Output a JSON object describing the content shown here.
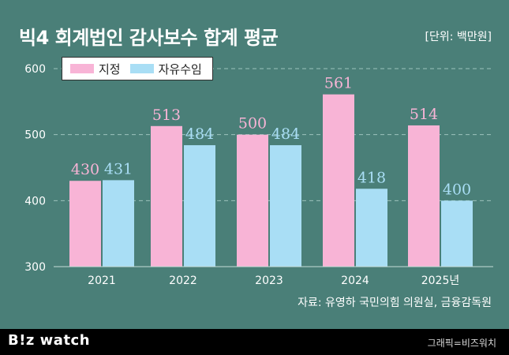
{
  "header": {
    "title": "빅4 회계법인 감사보수 합계 평균",
    "unit": "[단위: 백만원]"
  },
  "footer": {
    "source": "자료: 유영하 국민의힘 의원실, 금융감독원",
    "brand": "B!z watch",
    "credit": "그래픽=비즈워치"
  },
  "colors": {
    "background": "#4a7f78",
    "designated": "#f8b4d6",
    "free": "#a9def5"
  },
  "chart_data": {
    "type": "bar",
    "categories": [
      "2021",
      "2022",
      "2023",
      "2024",
      "2025년"
    ],
    "series": [
      {
        "name": "지정",
        "values": [
          430,
          513,
          500,
          561,
          514
        ]
      },
      {
        "name": "자유수임",
        "values": [
          431,
          484,
          484,
          418,
          400
        ]
      }
    ],
    "yticks": [
      "300",
      "400",
      "500",
      "600"
    ],
    "ylim": [
      300,
      600
    ],
    "grid": "dashed horizontal",
    "legend": "top-left",
    "value_labels": true
  }
}
